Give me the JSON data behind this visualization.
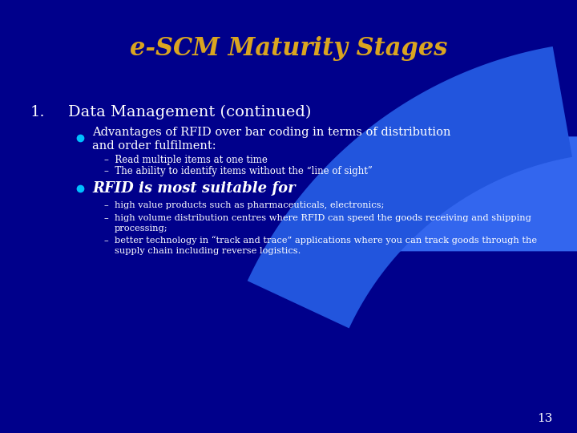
{
  "title": "e-SCM Maturity Stages",
  "title_color": "#DAA520",
  "background_color": "#00008B",
  "slide_number": "13",
  "heading_number": "1.",
  "heading_text": "Data Management (continued)",
  "heading_color": "#FFFFFF",
  "bullet1_text": "Advantages of RFID over bar coding in terms of distribution\nand order fulfilment:",
  "bullet1_color": "#FFFFFF",
  "sub_bullet1_1": "Read multiple items at one time",
  "sub_bullet1_2": "The ability to identify items without the “line of sight”",
  "sub_bullet_color": "#FFFFFF",
  "bullet2_text": "RFID is most suitable for",
  "bullet2_color": "#FFFFFF",
  "sub_bullet2_1": "high value products such as pharmaceuticals, electronics;",
  "sub_bullet2_2": "high volume distribution centres where RFID can speed the goods receiving and shipping\nprocessing;",
  "sub_bullet2_3": "better technology in “track and trace” applications where you can track goods through the\nsupply chain including reverse logistics.",
  "bullet_dot_color": "#00BFFF",
  "thin_arc_color": "#6699FF",
  "large_arc_color": "#2255DD",
  "right_fill_color": "#3366EE"
}
